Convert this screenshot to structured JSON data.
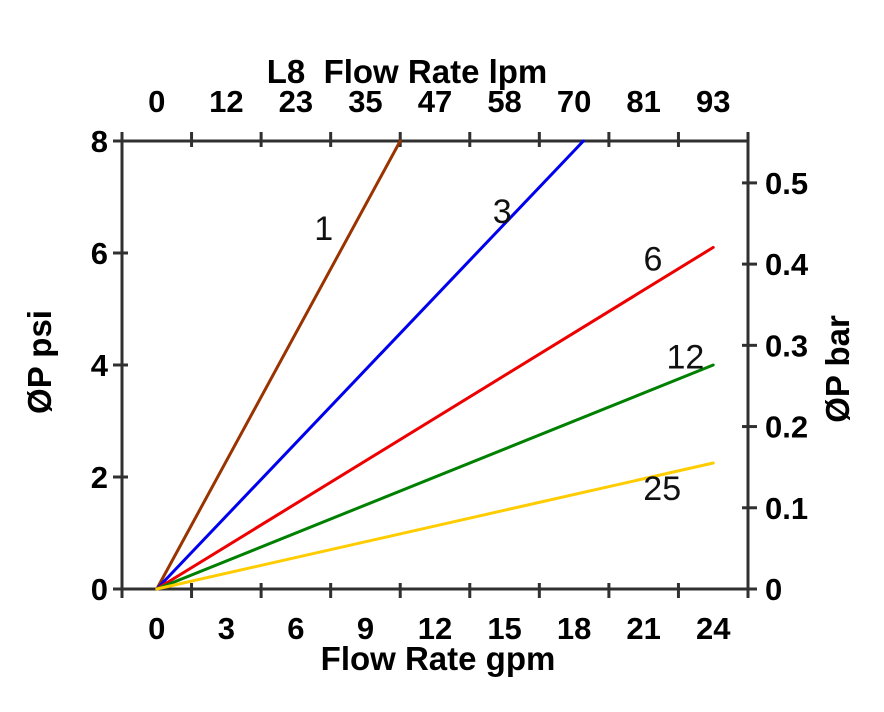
{
  "chart_data": {
    "type": "line",
    "background": "#ffffff",
    "axis_color": "#303030",
    "grid": "off",
    "legend": "inline-labels-on-lines",
    "top_axis": {
      "title": "L8  Flow Rate lpm",
      "tick_labels": [
        "0",
        "12",
        "23",
        "35",
        "47",
        "58",
        "70",
        "81",
        "93"
      ],
      "unit": "lpm"
    },
    "bottom_axis": {
      "title": "Flow Rate gpm",
      "tick_labels": [
        "0",
        "3",
        "6",
        "9",
        "12",
        "15",
        "18",
        "21",
        "24"
      ],
      "tick_values_gpm": [
        0,
        3,
        6,
        9,
        12,
        15,
        18,
        21,
        24
      ],
      "range_gpm": [
        0,
        25.5
      ],
      "unit": "gpm"
    },
    "left_axis": {
      "title": "ØP psi",
      "tick_labels": [
        "0",
        "2",
        "4",
        "6",
        "8"
      ],
      "tick_values": [
        0,
        2,
        4,
        6,
        8
      ],
      "range_psi": [
        0,
        8
      ],
      "unit": "psi"
    },
    "right_axis": {
      "title": "ØP bar",
      "tick_labels": [
        "0",
        "0.1",
        "0.2",
        "0.3",
        "0.4",
        "0.5"
      ],
      "tick_values": [
        0,
        0.1,
        0.2,
        0.3,
        0.4,
        0.5
      ],
      "psi_per_bar": 14.5038,
      "unit": "bar"
    },
    "series": [
      {
        "label": "1",
        "color": "#993300",
        "points_gpm_psi": [
          [
            0,
            0
          ],
          [
            10.5,
            8.0
          ]
        ],
        "label_pos_gpm_psi": [
          7.2,
          6.45
        ]
      },
      {
        "label": "3",
        "color": "#0000EE",
        "points_gpm_psi": [
          [
            0,
            0
          ],
          [
            18.4,
            8.0
          ]
        ],
        "label_pos_gpm_psi": [
          14.9,
          6.75
        ]
      },
      {
        "label": "6",
        "color": "#EE0000",
        "points_gpm_psi": [
          [
            0,
            0
          ],
          [
            24.0,
            6.1
          ]
        ],
        "label_pos_gpm_psi": [
          21.4,
          5.9
        ]
      },
      {
        "label": "12",
        "color": "#008000",
        "points_gpm_psi": [
          [
            0,
            0
          ],
          [
            24.0,
            4.0
          ]
        ],
        "label_pos_gpm_psi": [
          22.8,
          4.15
        ]
      },
      {
        "label": "25",
        "color": "#FFCC00",
        "points_gpm_psi": [
          [
            0,
            0
          ],
          [
            24.0,
            2.25
          ]
        ],
        "label_pos_gpm_psi": [
          21.8,
          1.8
        ]
      }
    ]
  }
}
